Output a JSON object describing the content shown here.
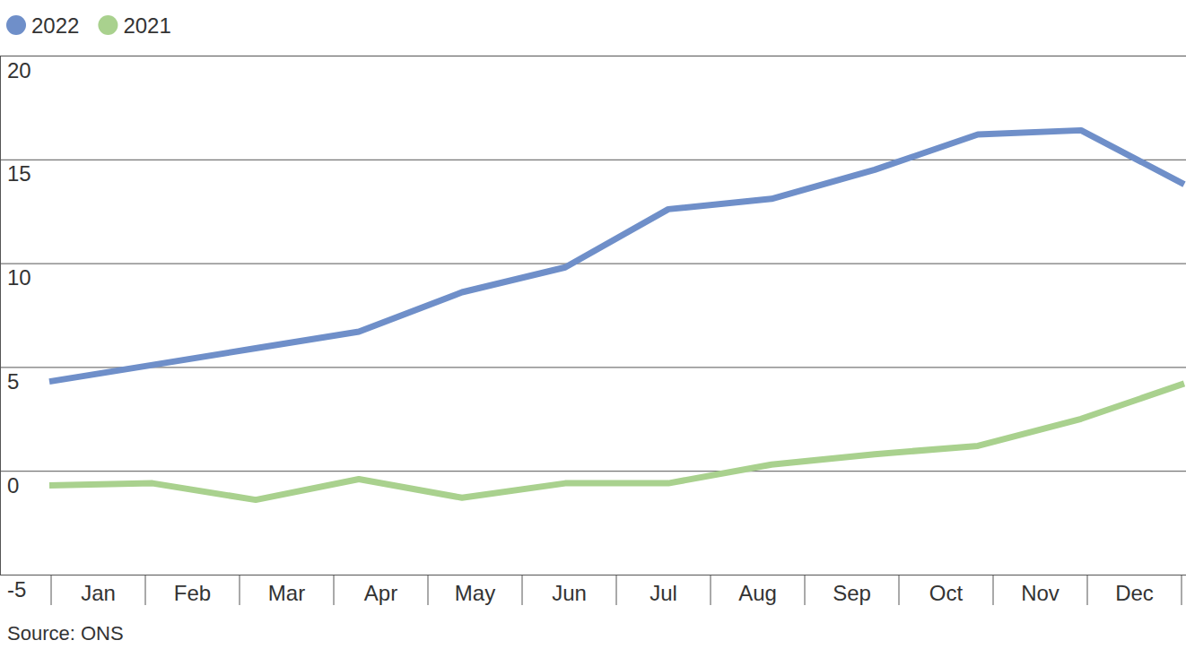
{
  "chart_data": {
    "type": "line",
    "categories": [
      "Jan",
      "Feb",
      "Mar",
      "Apr",
      "May",
      "Jun",
      "Jul",
      "Aug",
      "Sep",
      "Oct",
      "Nov",
      "Dec"
    ],
    "series": [
      {
        "name": "2022",
        "color": "#6f8fc9",
        "values": [
          4.3,
          5.1,
          5.9,
          6.7,
          8.6,
          9.8,
          12.6,
          13.1,
          14.5,
          16.2,
          16.4,
          13.8
        ]
      },
      {
        "name": "2021",
        "color": "#a9d18e",
        "values": [
          -0.7,
          -0.6,
          -1.4,
          -0.4,
          -1.3,
          -0.6,
          -0.6,
          0.3,
          0.8,
          1.2,
          2.5,
          4.2
        ]
      }
    ],
    "ylim": [
      -5,
      20
    ],
    "yticks": [
      -5,
      0,
      5,
      10,
      15,
      20
    ],
    "grid": true,
    "legend": "top-left",
    "annotations": [
      "Source: ONS"
    ]
  }
}
